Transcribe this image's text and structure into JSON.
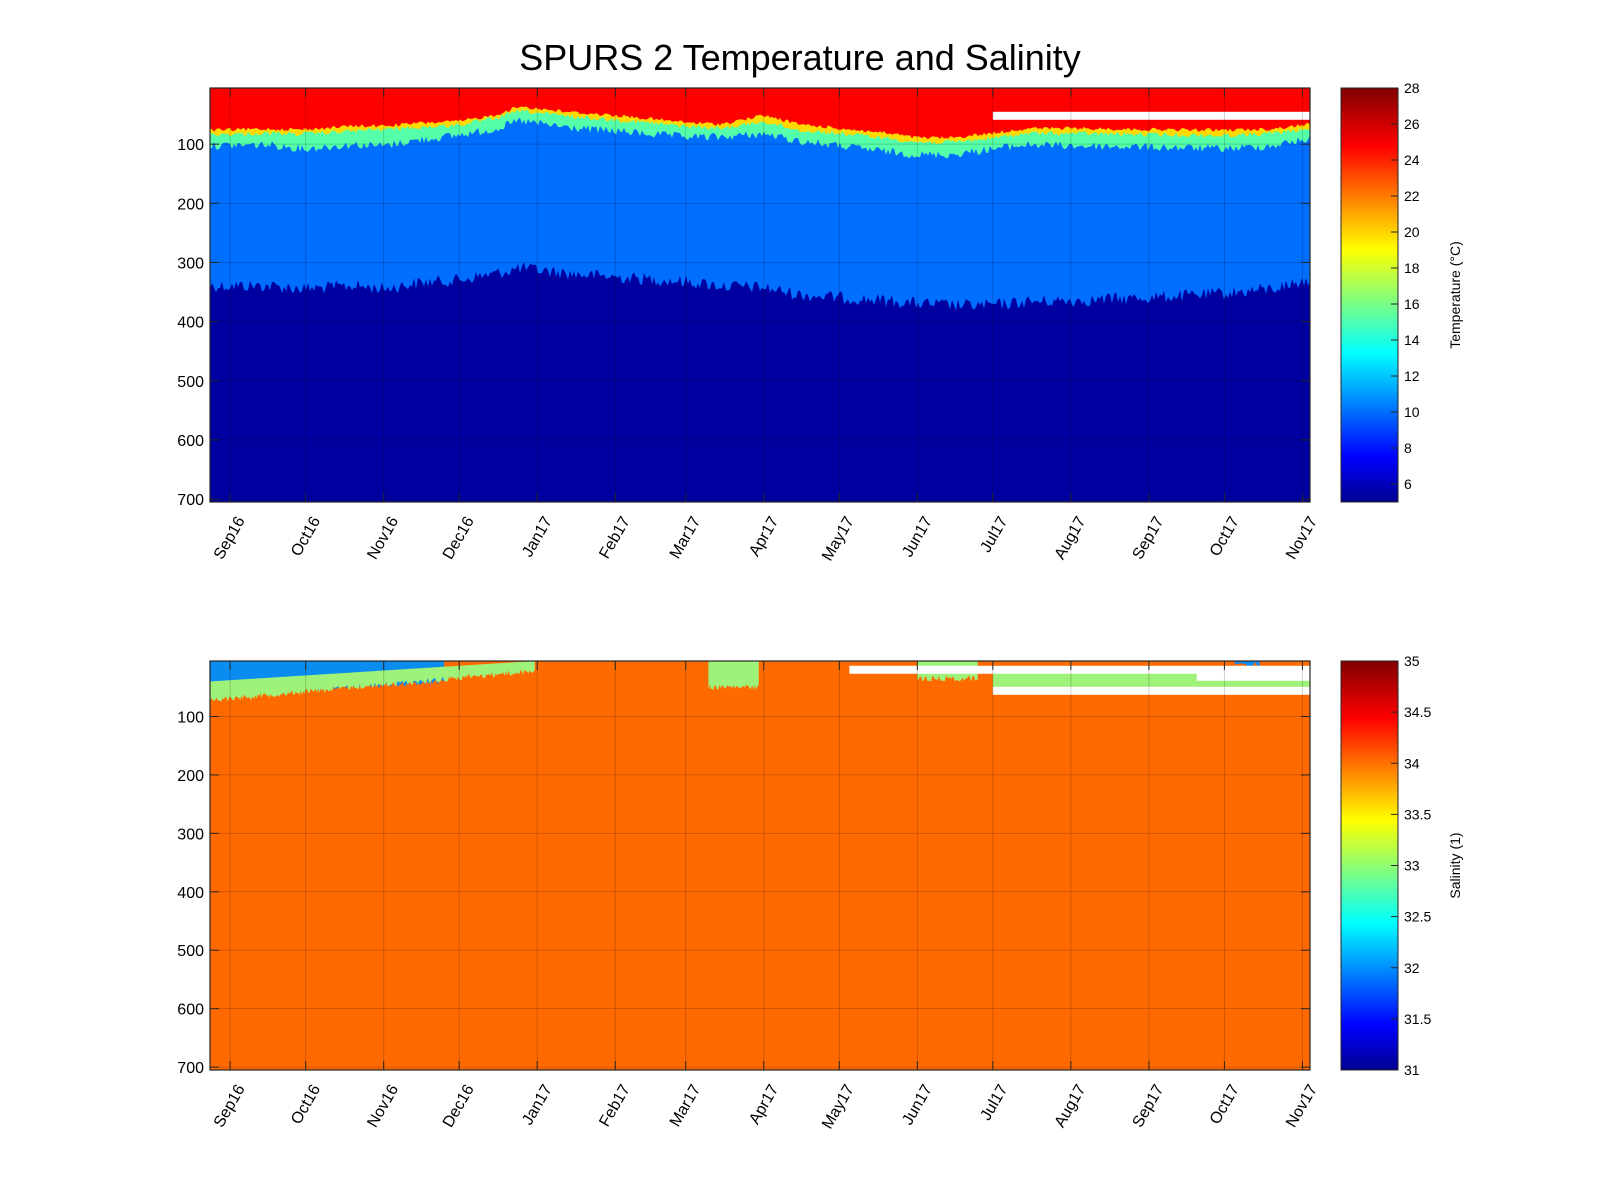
{
  "figure": {
    "title": "SPURS 2 Temperature and Salinity"
  },
  "chart_data": [
    {
      "type": "heatmap",
      "name": "temperature",
      "title": "SPURS 2 Temperature and Salinity",
      "xlabel": "",
      "ylabel": "",
      "x_axis": "date",
      "xlim": [
        "2016-08-24",
        "2017-11-04"
      ],
      "x_ticks": [
        {
          "date": "2016-09-01",
          "label": "Sep16"
        },
        {
          "date": "2016-10-01",
          "label": "Oct16"
        },
        {
          "date": "2016-11-01",
          "label": "Nov16"
        },
        {
          "date": "2016-12-01",
          "label": "Dec16"
        },
        {
          "date": "2017-01-01",
          "label": "Jan17"
        },
        {
          "date": "2017-02-01",
          "label": "Feb17"
        },
        {
          "date": "2017-03-01",
          "label": "Mar17"
        },
        {
          "date": "2017-04-01",
          "label": "Apr17"
        },
        {
          "date": "2017-05-01",
          "label": "May17"
        },
        {
          "date": "2017-06-01",
          "label": "Jun17"
        },
        {
          "date": "2017-07-01",
          "label": "Jul17"
        },
        {
          "date": "2017-08-01",
          "label": "Aug17"
        },
        {
          "date": "2017-09-01",
          "label": "Sep17"
        },
        {
          "date": "2017-10-01",
          "label": "Oct17"
        },
        {
          "date": "2017-11-01",
          "label": "Nov17"
        }
      ],
      "ylim": [
        5,
        705
      ],
      "y_reversed": true,
      "y_ticks": [
        100,
        200,
        300,
        400,
        500,
        600,
        700
      ],
      "grid": true,
      "colormap": "jet",
      "colorbar": {
        "label": "Temperature (°C)",
        "clim": [
          5,
          28
        ],
        "ticks": [
          6,
          8,
          10,
          12,
          14,
          16,
          18,
          20,
          22,
          24,
          26,
          28
        ]
      },
      "layers": [
        {
          "value": 25.0,
          "color": "#ff0000"
        },
        {
          "value": 19.0,
          "color": "#ffd900"
        },
        {
          "value": 15.0,
          "color": "#55ffaa"
        },
        {
          "value": 11.0,
          "color": "#006eff"
        },
        {
          "value": 6.0,
          "color": "#0000a0"
        }
      ],
      "boundaries": {
        "dates": [
          "2016-08-24",
          "2016-09-15",
          "2016-10-01",
          "2016-10-20",
          "2016-11-01",
          "2016-11-15",
          "2016-12-01",
          "2016-12-15",
          "2016-12-25",
          "2017-01-15",
          "2017-02-01",
          "2017-03-01",
          "2017-03-15",
          "2017-04-01",
          "2017-04-15",
          "2017-05-01",
          "2017-05-20",
          "2017-06-01",
          "2017-06-15",
          "2017-07-01",
          "2017-07-15",
          "2017-08-01",
          "2017-09-01",
          "2017-10-01",
          "2017-10-20",
          "2017-11-04"
        ],
        "warm_base": [
          75,
          73,
          74,
          68,
          68,
          63,
          60,
          50,
          35,
          45,
          50,
          62,
          65,
          50,
          65,
          72,
          80,
          88,
          88,
          80,
          72,
          72,
          74,
          75,
          73,
          65
        ],
        "mixed_base": [
          82,
          80,
          81,
          76,
          73,
          70,
          66,
          55,
          42,
          52,
          57,
          68,
          72,
          60,
          75,
          80,
          88,
          95,
          95,
          88,
          80,
          80,
          82,
          84,
          80,
          72
        ],
        "thermo_base": [
          100,
          98,
          105,
          98,
          100,
          90,
          82,
          72,
          58,
          70,
          75,
          85,
          85,
          80,
          92,
          100,
          110,
          115,
          115,
          105,
          98,
          100,
          102,
          105,
          100,
          88
        ],
        "deep_top": [
          335,
          335,
          340,
          335,
          340,
          330,
          325,
          315,
          305,
          315,
          320,
          328,
          335,
          338,
          350,
          355,
          360,
          365,
          368,
          368,
          362,
          360,
          355,
          348,
          340,
          325
        ]
      },
      "gaps": [
        {
          "start": "2017-07-01",
          "end": "2017-11-04",
          "depth": 52
        }
      ]
    },
    {
      "type": "heatmap",
      "name": "salinity",
      "xlabel": "",
      "ylabel": "",
      "x_axis": "date",
      "xlim": [
        "2016-08-24",
        "2017-11-04"
      ],
      "x_ticks": [
        {
          "date": "2016-09-01",
          "label": "Sep16"
        },
        {
          "date": "2016-10-01",
          "label": "Oct16"
        },
        {
          "date": "2016-11-01",
          "label": "Nov16"
        },
        {
          "date": "2016-12-01",
          "label": "Dec16"
        },
        {
          "date": "2017-01-01",
          "label": "Jan17"
        },
        {
          "date": "2017-02-01",
          "label": "Feb17"
        },
        {
          "date": "2017-03-01",
          "label": "Mar17"
        },
        {
          "date": "2017-04-01",
          "label": "Apr17"
        },
        {
          "date": "2017-05-01",
          "label": "May17"
        },
        {
          "date": "2017-06-01",
          "label": "Jun17"
        },
        {
          "date": "2017-07-01",
          "label": "Jul17"
        },
        {
          "date": "2017-08-01",
          "label": "Aug17"
        },
        {
          "date": "2017-09-01",
          "label": "Sep17"
        },
        {
          "date": "2017-10-01",
          "label": "Oct17"
        },
        {
          "date": "2017-11-01",
          "label": "Nov17"
        }
      ],
      "ylim": [
        5,
        705
      ],
      "y_reversed": true,
      "y_ticks": [
        100,
        200,
        300,
        400,
        500,
        600,
        700
      ],
      "grid": true,
      "colormap": "jet",
      "colorbar": {
        "label": "Salinity (1)",
        "clim": [
          31,
          35
        ],
        "ticks": [
          31,
          31.5,
          32,
          32.5,
          33,
          33.5,
          34,
          34.5,
          35
        ]
      },
      "background": {
        "value": 34.2,
        "color": "#ff6a00"
      },
      "fresh_patches": [
        {
          "start": "2016-08-24",
          "end": "2016-11-25",
          "top": 5,
          "bottom_start": 60,
          "bottom_end": 40,
          "value": 31.9,
          "color": "#0a8cf0"
        },
        {
          "start": "2016-08-24",
          "end": "2016-12-31",
          "top_start": 40,
          "top_end": 5,
          "bottom_start": 72,
          "bottom_end": 22,
          "value": 33.0,
          "color": "#9ef27a"
        },
        {
          "start": "2017-03-10",
          "end": "2017-03-30",
          "top": 5,
          "bottom": 50,
          "value": 33.0,
          "color": "#9ef27a"
        },
        {
          "start": "2017-06-01",
          "end": "2017-06-25",
          "top": 5,
          "bottom": 35,
          "value": 33.0,
          "color": "#9ef27a"
        },
        {
          "start": "2017-07-01",
          "end": "2017-11-04",
          "top": 15,
          "bottom": 55,
          "value": 33.1,
          "color": "#9ef27a"
        },
        {
          "start": "2017-10-05",
          "end": "2017-10-15",
          "top": 5,
          "bottom": 12,
          "value": 32.3,
          "color": "#0a8cf0"
        }
      ],
      "gaps": [
        {
          "start": "2017-05-05",
          "end": "2017-11-04",
          "depth": 20
        },
        {
          "start": "2017-09-20",
          "end": "2017-11-04",
          "depth": 32
        },
        {
          "start": "2017-07-01",
          "end": "2017-11-04",
          "depth": 56
        }
      ]
    }
  ]
}
